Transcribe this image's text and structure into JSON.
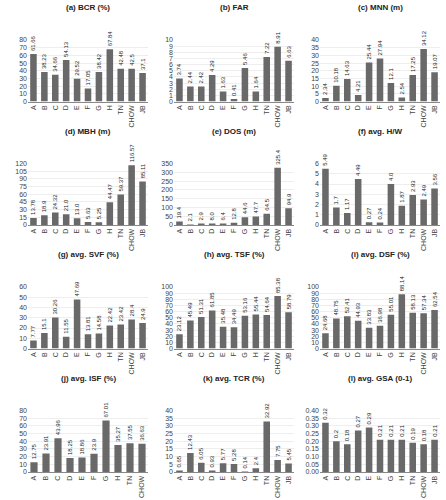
{
  "chart_data": [
    {
      "type": "bar",
      "title": "(a) BCR (%)",
      "categories": [
        "A",
        "B",
        "C",
        "D",
        "E",
        "F",
        "G",
        "H",
        "TN",
        "CHOW",
        "JB"
      ],
      "values": [
        61.66,
        38.23,
        34.66,
        54.13,
        29.52,
        17.05,
        38.42,
        67.84,
        42.48,
        42.5,
        37.1
      ],
      "color": "#696969",
      "ylim": [
        0,
        80
      ],
      "yticks": [
        0,
        10,
        20,
        30,
        40,
        50,
        60,
        70,
        80
      ],
      "grid": true,
      "data_labels": true
    },
    {
      "type": "bar",
      "title": "(b) FAR",
      "categories": [
        "A",
        "B",
        "C",
        "D",
        "E",
        "F",
        "G",
        "H",
        "TN",
        "CHOW",
        "JB"
      ],
      "values": [
        3.74,
        2.44,
        2.42,
        4.29,
        1.63,
        0.41,
        5.46,
        1.64,
        7.22,
        8.91,
        6.63
      ],
      "color": "#696969",
      "ylim": [
        0,
        10
      ],
      "yticks": [
        0,
        1,
        2,
        3,
        4,
        5,
        6,
        7,
        8,
        9,
        10
      ],
      "grid": true,
      "data_labels": true
    },
    {
      "type": "bar",
      "title": "(c) MNN (m)",
      "categories": [
        "A",
        "B",
        "C",
        "D",
        "E",
        "F",
        "G",
        "H",
        "TN",
        "CHOW",
        "JB"
      ],
      "values": [
        2.34,
        10.18,
        14.63,
        4.21,
        25.44,
        27.94,
        12.1,
        2.54,
        17.25,
        34.12,
        19.07
      ],
      "color": "#696969",
      "ylim": [
        0,
        40
      ],
      "yticks": [
        0,
        5,
        10,
        15,
        20,
        25,
        30,
        35,
        40
      ],
      "grid": true,
      "data_labels": true
    },
    {
      "type": "bar",
      "title": "(d) MBH (m)",
      "categories": [
        "A",
        "B",
        "C",
        "D",
        "E",
        "F",
        "G",
        "H",
        "TN",
        "CHOW",
        "JB"
      ],
      "values": [
        13.78,
        18.9,
        24.32,
        21.0,
        13.0,
        5.63,
        5.25,
        44.47,
        59.37,
        116.57,
        85.11
      ],
      "color": "#696969",
      "ylim": [
        0,
        120
      ],
      "yticks": [
        0,
        15,
        30,
        45,
        60,
        75,
        90,
        105,
        120
      ],
      "grid": true,
      "data_labels": true,
      "value_labels": [
        "13.78",
        "18.9",
        "24.32",
        "21.0",
        "13.0",
        "5.63",
        "5.25",
        "44.47",
        "59.37",
        "116.57",
        "85.11"
      ]
    },
    {
      "type": "bar",
      "title": "(e) DOS (m)",
      "categories": [
        "A",
        "B",
        "C",
        "D",
        "E",
        "F",
        "G",
        "H",
        "TN",
        "CHOW",
        "JB"
      ],
      "values": [
        19.4,
        2.1,
        2.9,
        8.0,
        6.4,
        12.8,
        44.6,
        47.7,
        64.5,
        325.4,
        94.9
      ],
      "color": "#696969",
      "ylim": [
        0,
        350
      ],
      "yticks": [
        0,
        50,
        100,
        150,
        200,
        250,
        300,
        350
      ],
      "grid": true,
      "data_labels": true,
      "value_labels": [
        "19.4",
        "2.1",
        "2.9",
        "8.0",
        "6.4",
        "12.8",
        "44.6",
        "47.7",
        "64.5",
        "325.4",
        "94.9"
      ]
    },
    {
      "type": "bar",
      "title": "(f) avg. H/W",
      "categories": [
        "A",
        "B",
        "C",
        "D",
        "E",
        "F",
        "G",
        "H",
        "TN",
        "CHOW",
        "JB"
      ],
      "values": [
        5.49,
        1.7,
        1.17,
        4.49,
        0.27,
        0.24,
        4.0,
        1.87,
        2.93,
        2.49,
        3.56
      ],
      "color": "#696969",
      "ylim": [
        0,
        6
      ],
      "yticks": [
        0,
        1,
        2,
        3,
        4,
        5,
        6
      ],
      "grid": true,
      "data_labels": true,
      "value_labels": [
        "5.49",
        "1.7",
        "1.17",
        "4.49",
        "0.27",
        "0.24",
        "4.0",
        "1.87",
        "2.93",
        "2.49",
        "3.56"
      ]
    },
    {
      "type": "bar",
      "title": "(g) avg. SVF (%)",
      "categories": [
        "A",
        "B",
        "C",
        "D",
        "E",
        "F",
        "G",
        "H",
        "TN",
        "CHOW",
        "JB"
      ],
      "values": [
        7.77,
        15.1,
        30.26,
        11.55,
        47.69,
        13.81,
        14.58,
        22.42,
        23.42,
        28.4,
        24.9
      ],
      "color": "#696969",
      "ylim": [
        0,
        60
      ],
      "yticks": [
        0,
        10,
        20,
        30,
        40,
        50,
        60
      ],
      "grid": true,
      "data_labels": true
    },
    {
      "type": "bar",
      "title": "(h) avg. TSF (%)",
      "categories": [
        "A",
        "B",
        "C",
        "D",
        "E",
        "F",
        "G",
        "H",
        "TN",
        "CHOW",
        "JB"
      ],
      "values": [
        23.12,
        45.49,
        51.31,
        61.85,
        35.48,
        34.49,
        53.16,
        55.44,
        54.64,
        85.38,
        58.79
      ],
      "color": "#696969",
      "ylim": [
        0,
        100
      ],
      "yticks": [
        0,
        10,
        20,
        30,
        40,
        50,
        60,
        70,
        80,
        90,
        100
      ],
      "grid": true,
      "data_labels": true
    },
    {
      "type": "bar",
      "title": "(i) avg. DSF (%)",
      "categories": [
        "A",
        "B",
        "C",
        "D",
        "E",
        "F",
        "G",
        "H",
        "TN",
        "CHOW",
        "JB"
      ],
      "values": [
        24.68,
        48.75,
        52.41,
        44.93,
        33.83,
        36.98,
        55.01,
        88.14,
        58.13,
        57.34,
        62.54
      ],
      "color": "#696969",
      "ylim": [
        0,
        100
      ],
      "yticks": [
        0,
        10,
        20,
        30,
        40,
        50,
        60,
        70,
        80,
        90,
        100
      ],
      "grid": true,
      "data_labels": true
    },
    {
      "type": "bar",
      "title": "(j) avg. ISF (%)",
      "categories": [
        "A",
        "B",
        "C",
        "D",
        "E",
        "F",
        "G",
        "H",
        "TN",
        "CHOW"
      ],
      "values": [
        12.75,
        23.91,
        43.96,
        18.25,
        18.86,
        23.9,
        67.01,
        35.27,
        37.55,
        36.63
      ],
      "color": "#696969",
      "ylim": [
        0,
        80
      ],
      "yticks": [
        0,
        10,
        20,
        30,
        40,
        50,
        60,
        70,
        80
      ],
      "grid": true,
      "data_labels": true
    },
    {
      "type": "bar",
      "title": "(k) avg. TCR (%)",
      "categories": [
        "A",
        "B",
        "C",
        "D",
        "E",
        "F",
        "G",
        "H",
        "TN",
        "CHOW",
        "JB"
      ],
      "values": [
        0.65,
        12.43,
        6.05,
        0.93,
        5.77,
        5.28,
        0.14,
        2.4,
        32.92,
        7.75,
        5.45
      ],
      "color": "#696969",
      "ylim": [
        0,
        40
      ],
      "yticks": [
        0,
        5,
        10,
        15,
        20,
        25,
        30,
        35,
        40
      ],
      "grid": true,
      "data_labels": true
    },
    {
      "type": "bar",
      "title": "(l) avg. GSA (0-1)",
      "categories": [
        "A",
        "B",
        "C",
        "D",
        "E",
        "F",
        "G",
        "H",
        "TN",
        "CHOW",
        "JB"
      ],
      "values": [
        0.32,
        0.2,
        0.18,
        0.27,
        0.29,
        0.21,
        0.21,
        0.21,
        0.19,
        0.18,
        0.21
      ],
      "color": "#696969",
      "ylim": [
        0,
        0.4
      ],
      "yticks": [
        {
          "value": 0,
          "label": "0.00"
        },
        0.05,
        {
          "value": 0.1,
          "label": "0.10"
        },
        0.15,
        {
          "value": 0.2,
          "label": "0.20"
        },
        0.25,
        {
          "value": 0.3,
          "label": "0.30"
        },
        0.35,
        {
          "value": 0.4,
          "label": "0.40"
        }
      ],
      "grid": true,
      "data_labels": true
    }
  ]
}
